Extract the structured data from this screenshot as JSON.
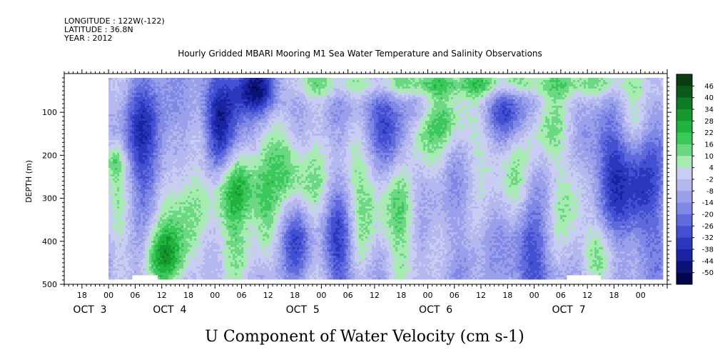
{
  "header": {
    "longitude": "LONGITUDE : 122W(-122)",
    "latitude": "LATITUDE : 36.8N",
    "year": "YEAR : 2012",
    "title": "Hourly Gridded MBARI Mooring M1 Sea Water Temperature and Salinity Observations"
  },
  "chart_data": {
    "type": "heatmap",
    "title": "Hourly Gridded MBARI Mooring M1 Sea Water Temperature and Salinity Observations",
    "xlabel": "U Component of Water Velocity (cm s-1)",
    "ylabel": "DEPTH (m)",
    "x_range_hours": [
      -10,
      126
    ],
    "data_start_hour": 0,
    "ylim": [
      500,
      10
    ],
    "y_ticks": [
      100,
      200,
      300,
      400,
      500
    ],
    "x_hour_ticks": [
      "18",
      "00",
      "06",
      "12",
      "18",
      "00",
      "06",
      "12",
      "18",
      "00",
      "06",
      "12",
      "18",
      "00",
      "06",
      "12",
      "18",
      "00",
      "06",
      "12",
      "18",
      "00"
    ],
    "x_hour_tick_positions": [
      -6,
      0,
      6,
      12,
      18,
      24,
      30,
      36,
      42,
      48,
      54,
      60,
      66,
      72,
      78,
      84,
      90,
      96,
      102,
      108,
      114,
      120
    ],
    "date_labels": [
      "OCT  3",
      "OCT  4",
      "OCT  5",
      "OCT  6",
      "OCT  7"
    ],
    "date_label_hours": [
      -8,
      10,
      40,
      70,
      100
    ],
    "colorbar": {
      "levels": [
        "46",
        "40",
        "34",
        "28",
        "22",
        "16",
        "10",
        "4",
        "-2",
        "-8",
        "-14",
        "-20",
        "-26",
        "-32",
        "-38",
        "-44",
        "-50"
      ],
      "colors": [
        "#0a3d14",
        "#0b5a1b",
        "#0f7a24",
        "#16972f",
        "#21b33d",
        "#3cc85a",
        "#6cd883",
        "#a6ebb0",
        "#c9cdf2",
        "#b5b8ee",
        "#9aa1ea",
        "#7f88e4",
        "#606adc",
        "#4350d1",
        "#2b38bd",
        "#1a24a0",
        "#0b1278",
        "#02064d"
      ]
    },
    "field": {
      "value_range": [
        -36,
        26
      ],
      "depth_top": 20,
      "depth_bottom": 485,
      "blobs": [
        {
          "t": 3,
          "d": 280,
          "value": 14,
          "st": 3,
          "sd": 120
        },
        {
          "t": 1,
          "d": 210,
          "value": 18,
          "st": 2,
          "sd": 30
        },
        {
          "t": 15,
          "d": 300,
          "value": 22,
          "st": 4,
          "sd": 110
        },
        {
          "t": 13,
          "d": 440,
          "value": 26,
          "st": 3,
          "sd": 50
        },
        {
          "t": 21,
          "d": 160,
          "value": 16,
          "st": 2,
          "sd": 60
        },
        {
          "t": 29,
          "d": 275,
          "value": 24,
          "st": 4,
          "sd": 55
        },
        {
          "t": 27,
          "d": 380,
          "value": 18,
          "st": 3,
          "sd": 90
        },
        {
          "t": 35,
          "d": 310,
          "value": 20,
          "st": 2,
          "sd": 110
        },
        {
          "t": 40,
          "d": 230,
          "value": 22,
          "st": 3,
          "sd": 60
        },
        {
          "t": 46,
          "d": 330,
          "value": 14,
          "st": 3,
          "sd": 140
        },
        {
          "t": 58,
          "d": 250,
          "value": 16,
          "st": 4,
          "sd": 80
        },
        {
          "t": 56,
          "d": 390,
          "value": 14,
          "st": 3,
          "sd": 90
        },
        {
          "t": 66,
          "d": 360,
          "value": 18,
          "st": 3,
          "sd": 110
        },
        {
          "t": 70,
          "d": 150,
          "value": 22,
          "st": 3,
          "sd": 50
        },
        {
          "t": 76,
          "d": 110,
          "value": 18,
          "st": 3,
          "sd": 40
        },
        {
          "t": 86,
          "d": 170,
          "value": 16,
          "st": 4,
          "sd": 70
        },
        {
          "t": 92,
          "d": 320,
          "value": 14,
          "st": 3,
          "sd": 90
        },
        {
          "t": 97,
          "d": 130,
          "value": 18,
          "st": 4,
          "sd": 60
        },
        {
          "t": 104,
          "d": 300,
          "value": 14,
          "st": 3,
          "sd": 100
        },
        {
          "t": 110,
          "d": 420,
          "value": 16,
          "st": 3,
          "sd": 50
        },
        {
          "t": 80,
          "d": 30,
          "value": 24,
          "st": 30,
          "sd": 25
        },
        {
          "t": 117,
          "d": 100,
          "value": 14,
          "st": 3,
          "sd": 60
        },
        {
          "t": 8,
          "d": 180,
          "value": -30,
          "st": 4,
          "sd": 100
        },
        {
          "t": 33,
          "d": 40,
          "value": -36,
          "st": 4,
          "sd": 40
        },
        {
          "t": 24,
          "d": 120,
          "value": -28,
          "st": 4,
          "sd": 100
        },
        {
          "t": 52,
          "d": 400,
          "value": -28,
          "st": 3,
          "sd": 80
        },
        {
          "t": 63,
          "d": 130,
          "value": -24,
          "st": 4,
          "sd": 80
        },
        {
          "t": 90,
          "d": 100,
          "value": -28,
          "st": 4,
          "sd": 60
        },
        {
          "t": 94,
          "d": 420,
          "value": -26,
          "st": 3,
          "sd": 80
        },
        {
          "t": 120,
          "d": 280,
          "value": -24,
          "st": 3,
          "sd": 100
        },
        {
          "t": 113,
          "d": 230,
          "value": -24,
          "st": 3,
          "sd": 90
        },
        {
          "t": 42,
          "d": 390,
          "value": -22,
          "st": 3,
          "sd": 60
        }
      ],
      "gaps": [
        {
          "t0": 5,
          "t1": 11,
          "d0": 475,
          "d1": 500
        },
        {
          "t0": 103,
          "t1": 111,
          "d0": 475,
          "d1": 500
        }
      ]
    }
  }
}
